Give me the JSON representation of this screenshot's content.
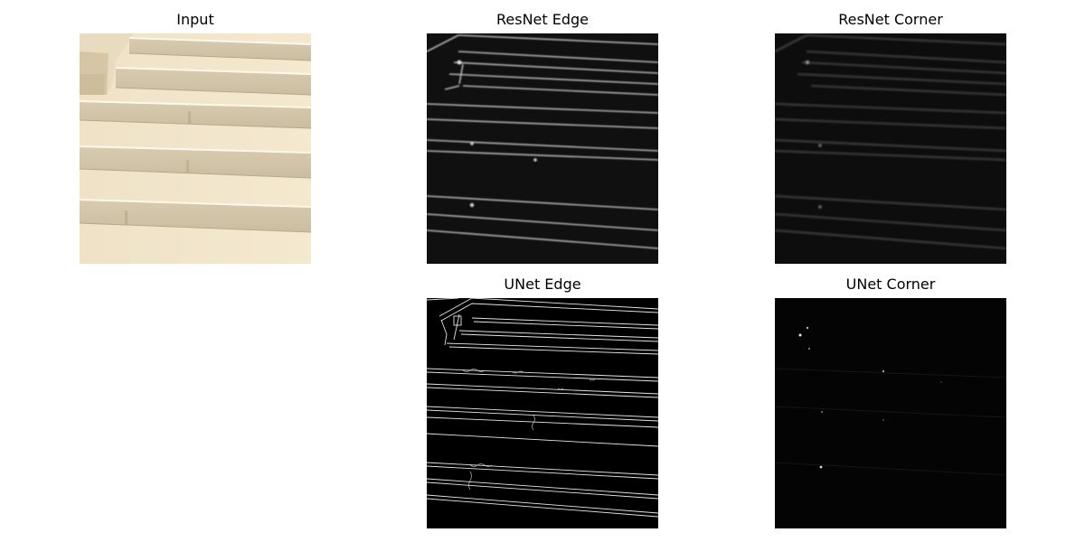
{
  "figure": {
    "panels": {
      "input": {
        "title": "Input",
        "image": "photo of pale sandstone stairs viewed from above at an angle"
      },
      "resnet_edge": {
        "title": "ResNet Edge",
        "image": "blurry grayscale edge map of stair edges on black background"
      },
      "resnet_corner": {
        "title": "ResNet Corner",
        "image": "dim grayscale corner response map on black background"
      },
      "unet_edge": {
        "title": "UNet Edge",
        "image": "thin white double-line edge map of stair edges on black background"
      },
      "unet_corner": {
        "title": "UNet Corner",
        "image": "nearly black map with a few sparse white corner dots"
      }
    }
  }
}
